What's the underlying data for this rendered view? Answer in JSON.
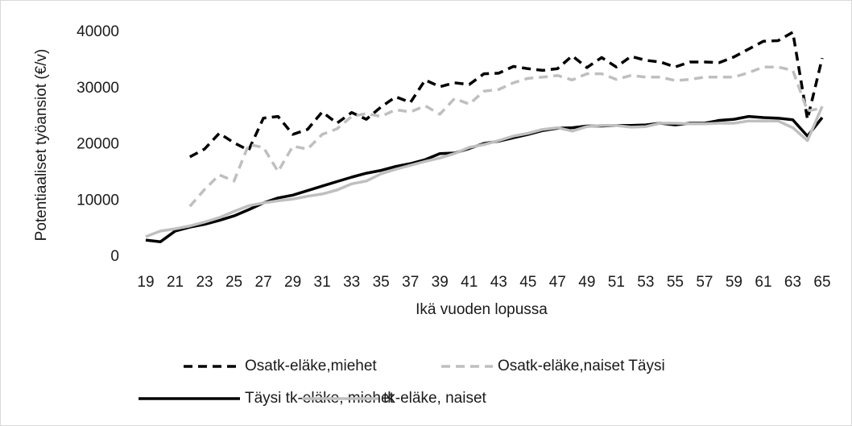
{
  "chart_data": {
    "type": "line",
    "y_label": "Potentiaaliset  työansiot (€/v)",
    "x_label": "Ikä vuoden lopussa",
    "categories": [
      "19",
      null,
      "21",
      null,
      "23",
      null,
      "25",
      null,
      "27",
      null,
      "29",
      null,
      "31",
      null,
      "33",
      null,
      "35",
      null,
      "37",
      null,
      "39",
      null,
      "41",
      null,
      "43",
      null,
      "45",
      null,
      "47",
      null,
      "49",
      null,
      "51",
      null,
      "53",
      null,
      "55",
      null,
      "57",
      null,
      "59",
      null,
      "61",
      null,
      "63",
      null,
      "65"
    ],
    "ylim": [
      0,
      40000
    ],
    "yticks": [
      0,
      10000,
      20000,
      30000,
      40000
    ],
    "grid": false,
    "series": [
      {
        "name": "Osatk-eläke,miehet",
        "color": "#000000",
        "dashed": true,
        "values": [
          null,
          null,
          null,
          17800,
          19200,
          22000,
          20300,
          19000,
          24700,
          25000,
          21800,
          22700,
          25800,
          23800,
          25700,
          24500,
          26700,
          28500,
          27500,
          31500,
          30300,
          31000,
          30700,
          32600,
          32700,
          33900,
          33500,
          33200,
          33500,
          35800,
          33700,
          35500,
          33800,
          35700,
          35000,
          34700,
          33800,
          34700,
          34700,
          34600,
          35600,
          37000,
          38400,
          38500,
          40000,
          24500,
          35400
        ]
      },
      {
        "name": "Osatk-eläke,naiset Täysi",
        "color": "#bfbfbf",
        "dashed": true,
        "values": [
          null,
          null,
          null,
          9000,
          12000,
          14600,
          13500,
          20000,
          19500,
          15200,
          19700,
          19200,
          21800,
          22800,
          25000,
          25500,
          25000,
          26200,
          25800,
          26900,
          25400,
          28200,
          27200,
          29500,
          29800,
          31000,
          31800,
          32000,
          32300,
          31500,
          32600,
          32600,
          31600,
          32300,
          32000,
          32000,
          31400,
          31600,
          32000,
          32000,
          32000,
          32800,
          33800,
          33800,
          33200,
          26000,
          26500
        ]
      },
      {
        "name": "Täysi tk-eläke, miehet",
        "color": "#000000",
        "dashed": false,
        "values": [
          3000,
          2700,
          4600,
          5300,
          5800,
          6500,
          7300,
          8400,
          9600,
          10500,
          11000,
          11800,
          12600,
          13400,
          14200,
          14900,
          15400,
          16100,
          16600,
          17300,
          18400,
          18500,
          19300,
          20200,
          20600,
          21200,
          21800,
          22500,
          22900,
          23000,
          23300,
          23300,
          23400,
          23400,
          23500,
          23800,
          23500,
          23800,
          23800,
          24300,
          24500,
          25000,
          24800,
          24700,
          24400,
          21500,
          24800
        ]
      },
      {
        "name": "tk-eläke, naiset",
        "color": "#bfbfbf",
        "dashed": false,
        "values": [
          3600,
          4600,
          5000,
          5500,
          6200,
          7000,
          8100,
          9100,
          9600,
          10000,
          10300,
          10800,
          11200,
          11900,
          13000,
          13500,
          14800,
          15600,
          16300,
          17000,
          17600,
          18400,
          19500,
          20000,
          20700,
          21500,
          22000,
          22700,
          23000,
          22400,
          23200,
          23400,
          23400,
          23100,
          23200,
          23800,
          23800,
          23700,
          23700,
          23800,
          23800,
          24200,
          24200,
          24200,
          23000,
          20700,
          26800
        ]
      }
    ]
  }
}
